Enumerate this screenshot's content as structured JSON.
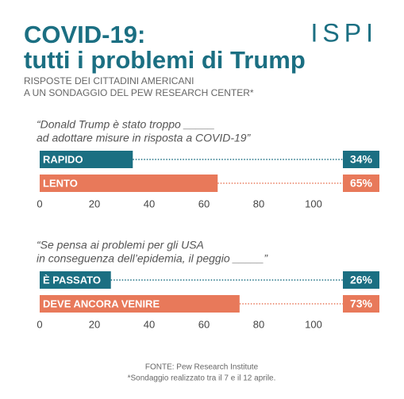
{
  "header": {
    "title": [
      "COVID-19:",
      "tutti i problemi di Trump"
    ],
    "subtitle": [
      "RISPOSTE DEI CITTADINI AMERICANI",
      "A UN SONDAGGIO DEL PEW RESEARCH CENTER*"
    ],
    "logo": "ISPI"
  },
  "chart_data": [
    {
      "type": "bar",
      "title": [
        "“Donald Trump è stato troppo _____",
        "ad adottare misure in risposta a COVID-19”"
      ],
      "categories": [
        "RAPIDO",
        "LENTO"
      ],
      "values": [
        34,
        65
      ],
      "value_labels": [
        "34%",
        "65%"
      ],
      "colors": [
        "#1b6f82",
        "#e8795a"
      ],
      "xlim": [
        0,
        100
      ],
      "xticks": [
        0,
        20,
        40,
        60,
        80,
        100
      ]
    },
    {
      "type": "bar",
      "title": [
        "“Se pensa ai problemi per gli USA",
        "in conseguenza dell’epidemia, il peggio _____”"
      ],
      "categories": [
        "È PASSATO",
        "DEVE ANCORA VENIRE"
      ],
      "values": [
        26,
        73
      ],
      "value_labels": [
        "26%",
        "73%"
      ],
      "colors": [
        "#1b6f82",
        "#e8795a"
      ],
      "xlim": [
        0,
        100
      ],
      "xticks": [
        0,
        20,
        40,
        60,
        80,
        100
      ]
    }
  ],
  "footer": {
    "source": "FONTE: Pew Research Institute",
    "note": "*Sondaggio realizzato tra il 7 e il 12 aprile."
  }
}
